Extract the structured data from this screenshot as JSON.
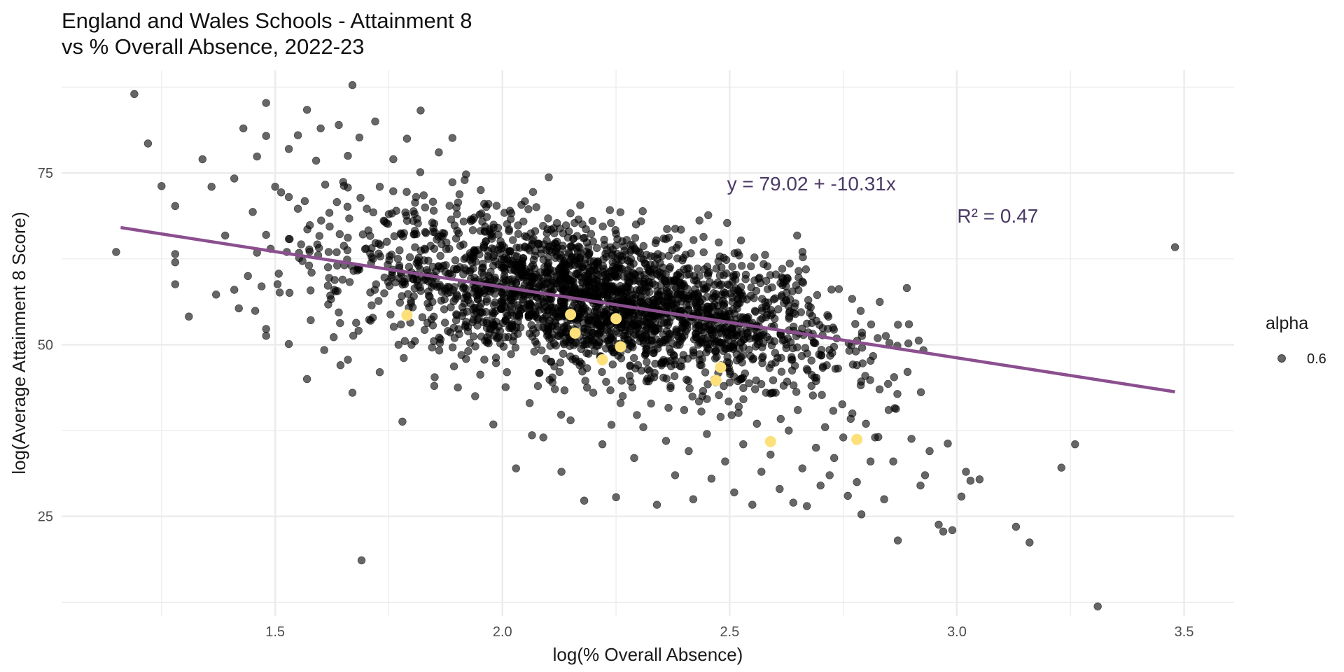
{
  "chart_data": {
    "type": "scatter",
    "title_lines": [
      "England and Wales Schools - Attainment 8",
      "vs % Overall Absence, 2022-23"
    ],
    "xlabel": "log(% Overall Absence)",
    "ylabel": "log(Average Attainment 8 Score)",
    "xlim": [
      1.03,
      3.61
    ],
    "ylim": [
      10.5,
      90
    ],
    "x_ticks": [
      1.5,
      2.0,
      2.5,
      3.0,
      3.5
    ],
    "x_tick_labels": [
      "1.5",
      "2.0",
      "2.5",
      "3.0",
      "3.5"
    ],
    "y_ticks": [
      25,
      50,
      75
    ],
    "y_tick_labels": [
      "25",
      "50",
      "75"
    ],
    "grid": true,
    "colors": {
      "points": "#000000",
      "highlight": "#FDE07A",
      "regression": "#8B4F8F",
      "annotation": "#4b3a66",
      "grid": "#EBEBEB"
    },
    "regression": {
      "intercept": 79.02,
      "slope": -10.31,
      "x_range": [
        1.16,
        3.48
      ],
      "equation_label": "y = 79.02 + -10.31x",
      "r2_label": "R² = 0.47"
    },
    "annotations": [
      {
        "text": "y = 79.02 + -10.31x",
        "x": 2.68,
        "y": 73.5
      },
      {
        "text": "R² = 0.47",
        "x": 3.09,
        "y": 68.8
      }
    ],
    "legend": {
      "title": "alpha",
      "label": "0.6",
      "position": "right"
    },
    "series": [
      {
        "role": "schools",
        "point_alpha": 0.6,
        "points": [
          [
            1.15,
            63.5
          ],
          [
            1.19,
            86.5
          ],
          [
            1.22,
            79.3
          ],
          [
            1.25,
            73.1
          ],
          [
            1.28,
            70.2
          ],
          [
            1.28,
            63.2
          ],
          [
            1.28,
            62.0
          ],
          [
            1.28,
            58.8
          ],
          [
            1.31,
            54.1
          ],
          [
            1.34,
            77.0
          ],
          [
            1.36,
            73.0
          ],
          [
            1.37,
            57.3
          ],
          [
            1.39,
            65.9
          ],
          [
            1.41,
            74.2
          ],
          [
            1.41,
            58.0
          ],
          [
            1.42,
            55.3
          ],
          [
            1.43,
            81.5
          ],
          [
            1.44,
            60.0
          ],
          [
            1.46,
            77.4
          ],
          [
            1.46,
            63.4
          ],
          [
            1.47,
            58.5
          ],
          [
            1.48,
            85.2
          ],
          [
            1.48,
            80.4
          ],
          [
            1.48,
            66.0
          ],
          [
            1.48,
            52.3
          ],
          [
            1.48,
            51.3
          ],
          [
            1.5,
            73.0
          ],
          [
            1.51,
            57.6
          ],
          [
            1.53,
            78.5
          ],
          [
            1.53,
            71.5
          ],
          [
            1.53,
            65.4
          ],
          [
            1.53,
            50.1
          ],
          [
            1.55,
            80.5
          ],
          [
            1.55,
            69.8
          ],
          [
            1.56,
            62.2
          ],
          [
            1.57,
            84.2
          ],
          [
            1.57,
            45.0
          ],
          [
            1.58,
            60.5
          ],
          [
            1.59,
            76.8
          ],
          [
            1.6,
            81.5
          ],
          [
            1.61,
            73.3
          ],
          [
            1.62,
            67.2
          ],
          [
            1.63,
            58.0
          ],
          [
            1.64,
            82.0
          ],
          [
            1.64,
            54.7
          ],
          [
            1.66,
            77.5
          ],
          [
            1.66,
            47.8
          ],
          [
            1.67,
            87.8
          ],
          [
            1.67,
            43.0
          ],
          [
            1.69,
            18.6
          ],
          [
            1.7,
            64.0
          ],
          [
            1.71,
            53.5
          ],
          [
            1.72,
            82.5
          ],
          [
            1.73,
            73.0
          ],
          [
            1.73,
            46.0
          ],
          [
            1.74,
            57.5
          ],
          [
            1.75,
            69.0
          ],
          [
            1.76,
            77.0
          ],
          [
            1.77,
            62.5
          ],
          [
            1.78,
            38.8
          ],
          [
            1.79,
            80.0
          ],
          [
            1.8,
            50.0
          ],
          [
            1.81,
            71.5
          ],
          [
            1.82,
            84.1
          ],
          [
            1.83,
            66.4
          ],
          [
            1.84,
            57.0
          ],
          [
            1.85,
            44.0
          ],
          [
            1.86,
            78.0
          ],
          [
            1.87,
            61.5
          ],
          [
            1.88,
            52.0
          ],
          [
            1.89,
            80.1
          ],
          [
            1.9,
            69.0
          ],
          [
            1.91,
            48.5
          ],
          [
            1.92,
            74.8
          ],
          [
            1.93,
            63.0
          ],
          [
            1.94,
            42.5
          ],
          [
            1.95,
            55.5
          ],
          [
            1.96,
            70.5
          ],
          [
            1.97,
            60.0
          ],
          [
            1.98,
            38.4
          ],
          [
            1.99,
            51.0
          ],
          [
            2.0,
            64.5
          ],
          [
            2.01,
            46.0
          ],
          [
            2.02,
            57.5
          ],
          [
            2.03,
            32.0
          ],
          [
            2.04,
            52.5
          ],
          [
            2.05,
            61.0
          ],
          [
            2.06,
            41.5
          ],
          [
            2.07,
            49.0
          ],
          [
            2.08,
            58.5
          ],
          [
            2.09,
            36.5
          ],
          [
            2.1,
            55.0
          ],
          [
            2.11,
            44.5
          ],
          [
            2.12,
            65.0
          ],
          [
            2.13,
            31.5
          ],
          [
            2.14,
            50.5
          ],
          [
            2.15,
            39.0
          ],
          [
            2.16,
            58.0
          ],
          [
            2.17,
            47.0
          ],
          [
            2.18,
            27.3
          ],
          [
            2.19,
            53.5
          ],
          [
            2.2,
            43.0
          ],
          [
            2.21,
            61.5
          ],
          [
            2.22,
            35.5
          ],
          [
            2.23,
            63.8
          ],
          [
            2.24,
            49.5
          ],
          [
            2.25,
            27.8
          ],
          [
            2.26,
            41.5
          ],
          [
            2.27,
            56.5
          ],
          [
            2.28,
            45.5
          ],
          [
            2.29,
            33.5
          ],
          [
            2.3,
            51.5
          ],
          [
            2.31,
            38.0
          ],
          [
            2.33,
            54.8
          ],
          [
            2.34,
            26.7
          ],
          [
            2.35,
            47.0
          ],
          [
            2.36,
            36.0
          ],
          [
            2.37,
            44.0
          ],
          [
            2.38,
            31.0
          ],
          [
            2.39,
            50.0
          ],
          [
            2.4,
            40.5
          ],
          [
            2.41,
            34.5
          ],
          [
            2.42,
            27.5
          ],
          [
            2.43,
            57.3
          ],
          [
            2.44,
            42.5
          ],
          [
            2.45,
            37.0
          ],
          [
            2.46,
            30.5
          ],
          [
            2.47,
            49.0
          ],
          [
            2.48,
            39.5
          ],
          [
            2.49,
            33.0
          ],
          [
            2.5,
            44.5
          ],
          [
            2.51,
            28.5
          ],
          [
            2.52,
            41.0
          ],
          [
            2.53,
            35.5
          ],
          [
            2.54,
            51.7
          ],
          [
            2.55,
            26.7
          ],
          [
            2.56,
            38.5
          ],
          [
            2.57,
            31.5
          ],
          [
            2.58,
            43.0
          ],
          [
            2.59,
            34.0
          ],
          [
            2.6,
            48.8
          ],
          [
            2.61,
            29.0
          ],
          [
            2.62,
            50.7
          ],
          [
            2.63,
            37.5
          ],
          [
            2.64,
            27.0
          ],
          [
            2.65,
            40.5
          ],
          [
            2.66,
            32.0
          ],
          [
            2.67,
            26.5
          ],
          [
            2.68,
            44.0
          ],
          [
            2.69,
            35.0
          ],
          [
            2.7,
            29.5
          ],
          [
            2.71,
            38.0
          ],
          [
            2.72,
            31.0
          ],
          [
            2.73,
            33.5
          ],
          [
            2.75,
            36.5
          ],
          [
            2.76,
            28.0
          ],
          [
            2.77,
            40.0
          ],
          [
            2.78,
            30.0
          ],
          [
            2.79,
            25.3
          ],
          [
            2.8,
            38.5
          ],
          [
            2.81,
            33.0
          ],
          [
            2.82,
            36.5
          ],
          [
            2.83,
            43.5
          ],
          [
            2.84,
            27.5
          ],
          [
            2.85,
            40.5
          ],
          [
            2.86,
            33.0
          ],
          [
            2.87,
            21.5
          ],
          [
            2.9,
            36.3
          ],
          [
            2.92,
            29.5
          ],
          [
            2.93,
            31.0
          ],
          [
            2.94,
            34.5
          ],
          [
            2.96,
            23.8
          ],
          [
            2.97,
            22.8
          ],
          [
            2.98,
            35.6
          ],
          [
            2.99,
            23.0
          ],
          [
            3.01,
            27.9
          ],
          [
            3.02,
            31.5
          ],
          [
            3.03,
            30.2
          ],
          [
            3.05,
            30.4
          ],
          [
            3.13,
            23.5
          ],
          [
            3.16,
            21.2
          ],
          [
            3.23,
            32.1
          ],
          [
            3.26,
            35.5
          ],
          [
            3.31,
            11.9
          ],
          [
            3.48,
            64.2
          ]
        ]
      },
      {
        "role": "highlighted",
        "points": [
          [
            1.79,
            54.3
          ],
          [
            2.15,
            54.4
          ],
          [
            2.16,
            51.7
          ],
          [
            2.22,
            47.8
          ],
          [
            2.25,
            53.8
          ],
          [
            2.26,
            49.7
          ],
          [
            2.47,
            44.8
          ],
          [
            2.48,
            46.7
          ],
          [
            2.59,
            35.9
          ],
          [
            2.78,
            36.2
          ]
        ]
      }
    ]
  }
}
